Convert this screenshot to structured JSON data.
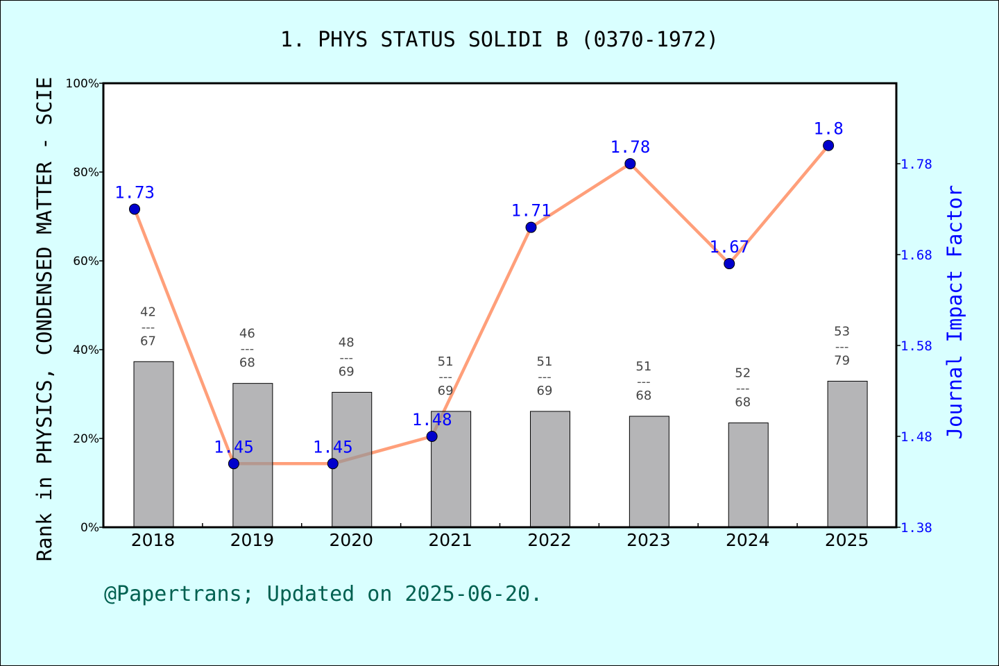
{
  "chart_data": {
    "type": "bar",
    "title": "1. PHYS STATUS SOLIDI B (0370-1972)",
    "ylabel": "Rank in PHYSICS, CONDENSED MATTER - SCIE",
    "y2label": "Journal Impact Factor",
    "footer": "@Papertrans; Updated on 2025-06-20.",
    "categories": [
      "2018",
      "2019",
      "2020",
      "2021",
      "2022",
      "2023",
      "2024",
      "2025"
    ],
    "ylim": [
      0,
      100
    ],
    "yticks": [
      "0%",
      "20%",
      "40%",
      "60%",
      "80%",
      "100%"
    ],
    "y2lim": [
      1.38,
      1.8685
    ],
    "y2ticks": [
      "1.38",
      "1.48",
      "1.58",
      "1.68",
      "1.78"
    ],
    "ranks": [
      42,
      46,
      48,
      51,
      51,
      51,
      52,
      53
    ],
    "totals": [
      67,
      68,
      69,
      69,
      69,
      68,
      68,
      79
    ],
    "rank_label_sep": "---",
    "bar_values_percent": [
      37.3,
      32.4,
      30.4,
      26.1,
      26.1,
      25.0,
      23.5,
      32.9
    ],
    "series": [
      {
        "name": "Journal Impact Factor",
        "values": [
          1.73,
          1.45,
          1.45,
          1.48,
          1.71,
          1.78,
          1.67,
          1.8
        ],
        "labels": [
          "1.73",
          "1.45",
          "1.45",
          "1.48",
          "1.71",
          "1.78",
          "1.67",
          "1.8"
        ]
      }
    ],
    "colors": {
      "bar": "#969698",
      "line": "#ff9f7a",
      "point": "#0000cc",
      "jif_text": "#0000ff",
      "footer": "#006050",
      "background": "#d9ffff"
    }
  }
}
